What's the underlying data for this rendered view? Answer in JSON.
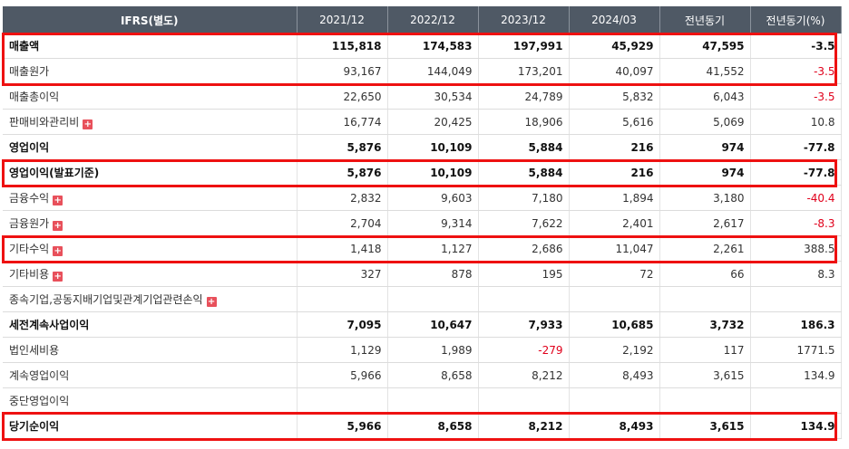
{
  "header": [
    "IFRS(별도)",
    "2021/12",
    "2022/12",
    "2023/12",
    "2024/03",
    "전년동기",
    "전년동기(%)"
  ],
  "rows": [
    {
      "label": "매출액",
      "bold": true,
      "plus": false,
      "values": [
        "115,818",
        "174,583",
        "197,991",
        "45,929",
        "47,595",
        "-3.5"
      ]
    },
    {
      "label": "매출원가",
      "bold": false,
      "plus": false,
      "values": [
        "93,167",
        "144,049",
        "173,201",
        "40,097",
        "41,552",
        "-3.5"
      ]
    },
    {
      "label": "매출총이익",
      "bold": false,
      "plus": false,
      "values": [
        "22,650",
        "30,534",
        "24,789",
        "5,832",
        "6,043",
        "-3.5"
      ]
    },
    {
      "label": "판매비와관리비",
      "bold": false,
      "plus": true,
      "values": [
        "16,774",
        "20,425",
        "18,906",
        "5,616",
        "5,069",
        "10.8"
      ]
    },
    {
      "label": "영업이익",
      "bold": true,
      "plus": false,
      "values": [
        "5,876",
        "10,109",
        "5,884",
        "216",
        "974",
        "-77.8"
      ]
    },
    {
      "label": "영업이익(발표기준)",
      "bold": true,
      "plus": false,
      "values": [
        "5,876",
        "10,109",
        "5,884",
        "216",
        "974",
        "-77.8"
      ]
    },
    {
      "label": "금융수익",
      "bold": false,
      "plus": true,
      "values": [
        "2,832",
        "9,603",
        "7,180",
        "1,894",
        "3,180",
        "-40.4"
      ]
    },
    {
      "label": "금융원가",
      "bold": false,
      "plus": true,
      "values": [
        "2,704",
        "9,314",
        "7,622",
        "2,401",
        "2,617",
        "-8.3"
      ]
    },
    {
      "label": "기타수익",
      "bold": false,
      "plus": true,
      "values": [
        "1,418",
        "1,127",
        "2,686",
        "11,047",
        "2,261",
        "388.5"
      ]
    },
    {
      "label": "기타비용",
      "bold": false,
      "plus": true,
      "values": [
        "327",
        "878",
        "195",
        "72",
        "66",
        "8.3"
      ]
    },
    {
      "label": "종속기업,공동지배기업및관계기업관련손익",
      "bold": false,
      "plus": true,
      "values": [
        "",
        "",
        "",
        "",
        "",
        ""
      ]
    },
    {
      "label": "세전계속사업이익",
      "bold": true,
      "plus": false,
      "values": [
        "7,095",
        "10,647",
        "7,933",
        "10,685",
        "3,732",
        "186.3"
      ]
    },
    {
      "label": "법인세비용",
      "bold": false,
      "plus": false,
      "values": [
        "1,129",
        "1,989",
        "-279",
        "2,192",
        "117",
        "1771.5"
      ]
    },
    {
      "label": "계속영업이익",
      "bold": false,
      "plus": false,
      "values": [
        "5,966",
        "8,658",
        "8,212",
        "8,493",
        "3,615",
        "134.9"
      ]
    },
    {
      "label": "중단영업이익",
      "bold": false,
      "plus": false,
      "values": [
        "",
        "",
        "",
        "",
        "",
        ""
      ]
    },
    {
      "label": "당기순이익",
      "bold": true,
      "plus": false,
      "values": [
        "5,966",
        "8,658",
        "8,212",
        "8,493",
        "3,615",
        "134.9"
      ]
    }
  ],
  "plus_icon": "+",
  "colors": {
    "header_bg": "#4f5965",
    "negative": "#e0001b",
    "highlight": "#ee1111",
    "expand_icon": "#e8505b"
  }
}
